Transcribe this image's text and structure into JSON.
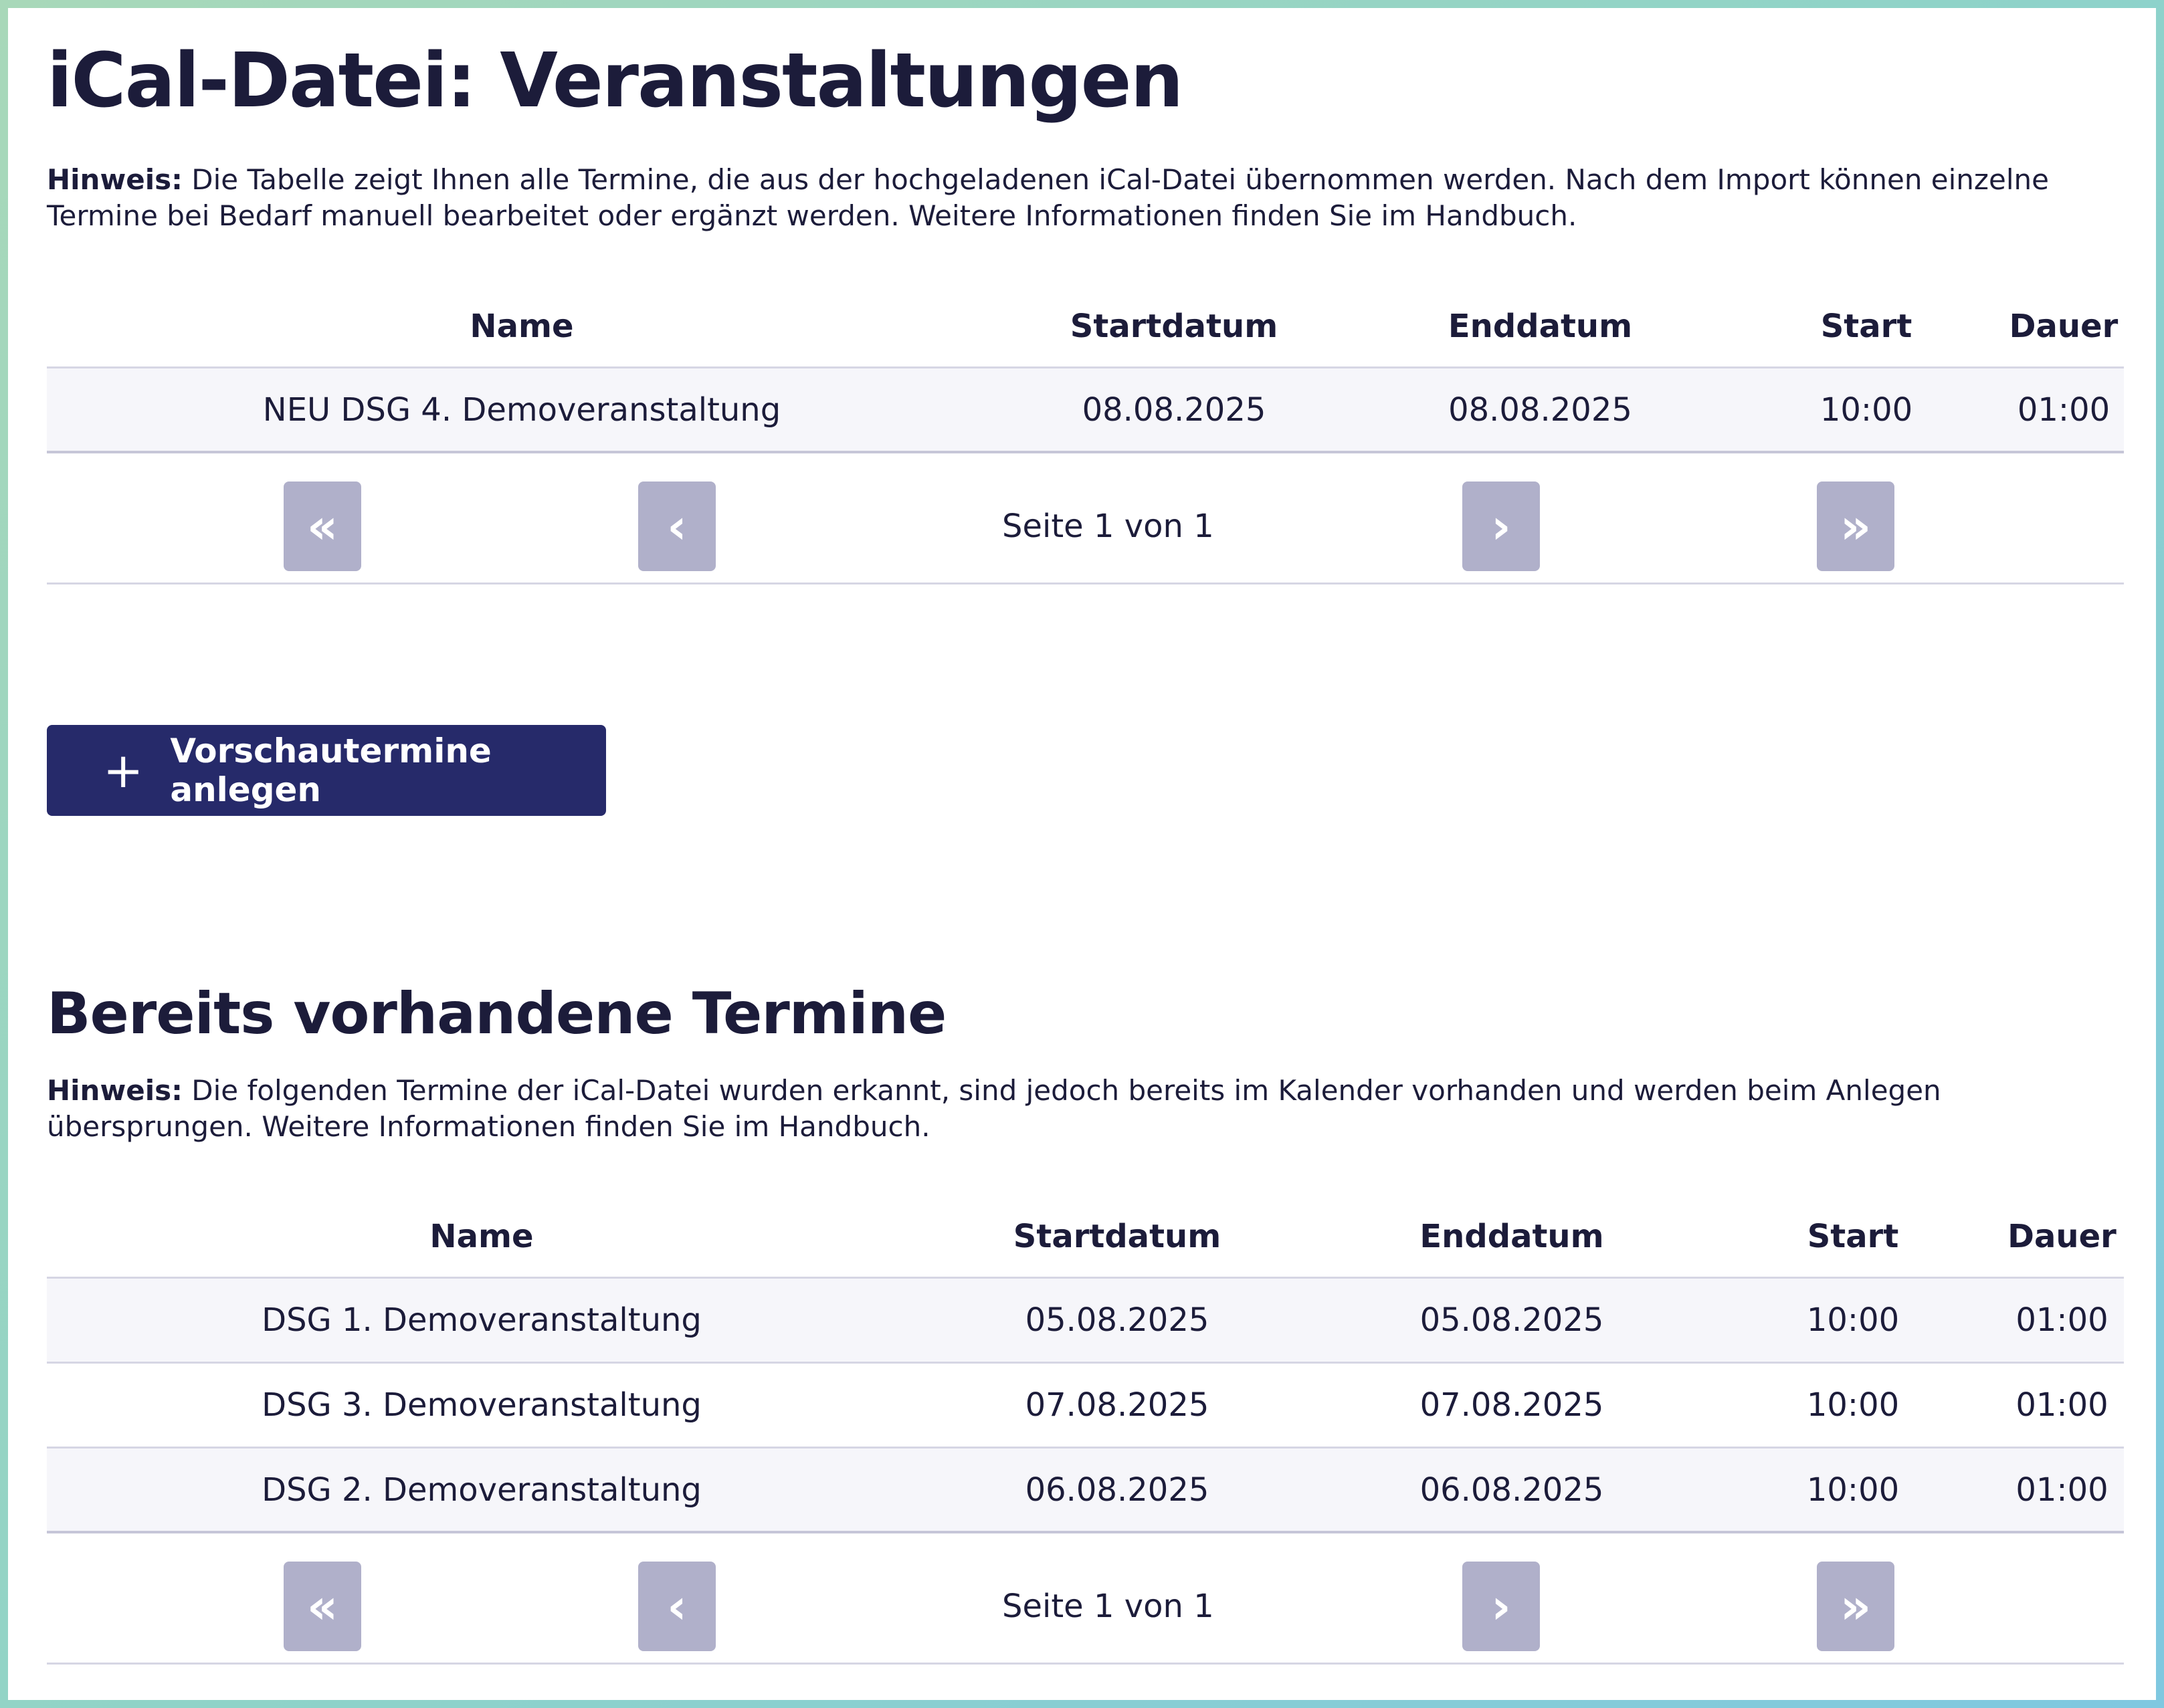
{
  "main": {
    "title": "iCal-Datei: Veranstaltungen",
    "hint_label": "Hinweis:",
    "hint_text": " Die Tabelle zeigt Ihnen alle Termine, die aus der hochgeladenen iCal-Datei übernommen werden. Nach dem Import können einzelne Termine bei Bedarf manuell bearbeitet oder ergänzt werden. Weitere Informationen finden Sie im Handbuch.",
    "columns": [
      "Name",
      "Startdatum",
      "Enddatum",
      "Start",
      "Dauer"
    ],
    "rows": [
      [
        "NEU DSG 4. Demoveranstaltung",
        "08.08.2025",
        "08.08.2025",
        "10:00",
        "01:00"
      ]
    ],
    "pager": {
      "first": "«",
      "prev": "‹",
      "info": "Seite 1 von 1",
      "next": "›",
      "last": "»"
    },
    "create_button": "Vorschautermine anlegen",
    "create_icon": "plus-icon"
  },
  "existing": {
    "title": "Bereits vorhandene Termine",
    "hint_label": "Hinweis:",
    "hint_text": " Die folgenden Termine der iCal-Datei wurden erkannt, sind jedoch bereits im Kalender vorhanden und werden beim Anlegen übersprungen. Weitere Informationen finden Sie im Handbuch.",
    "columns": [
      "Name",
      "Startdatum",
      "Enddatum",
      "Start",
      "Dauer"
    ],
    "rows": [
      [
        "DSG 1. Demoveranstaltung",
        "05.08.2025",
        "05.08.2025",
        "10:00",
        "01:00"
      ],
      [
        "DSG 3. Demoveranstaltung",
        "07.08.2025",
        "07.08.2025",
        "10:00",
        "01:00"
      ],
      [
        "DSG 2. Demoveranstaltung",
        "06.08.2025",
        "06.08.2025",
        "10:00",
        "01:00"
      ]
    ],
    "pager": {
      "first": "«",
      "prev": "‹",
      "info": "Seite 1 von 1",
      "next": "›",
      "last": "»"
    }
  },
  "colors": {
    "primary": "#262a6a",
    "pager_button": "#b0b0ca",
    "row_shade": "#f6f6fa",
    "text": "#1c1c3a"
  }
}
